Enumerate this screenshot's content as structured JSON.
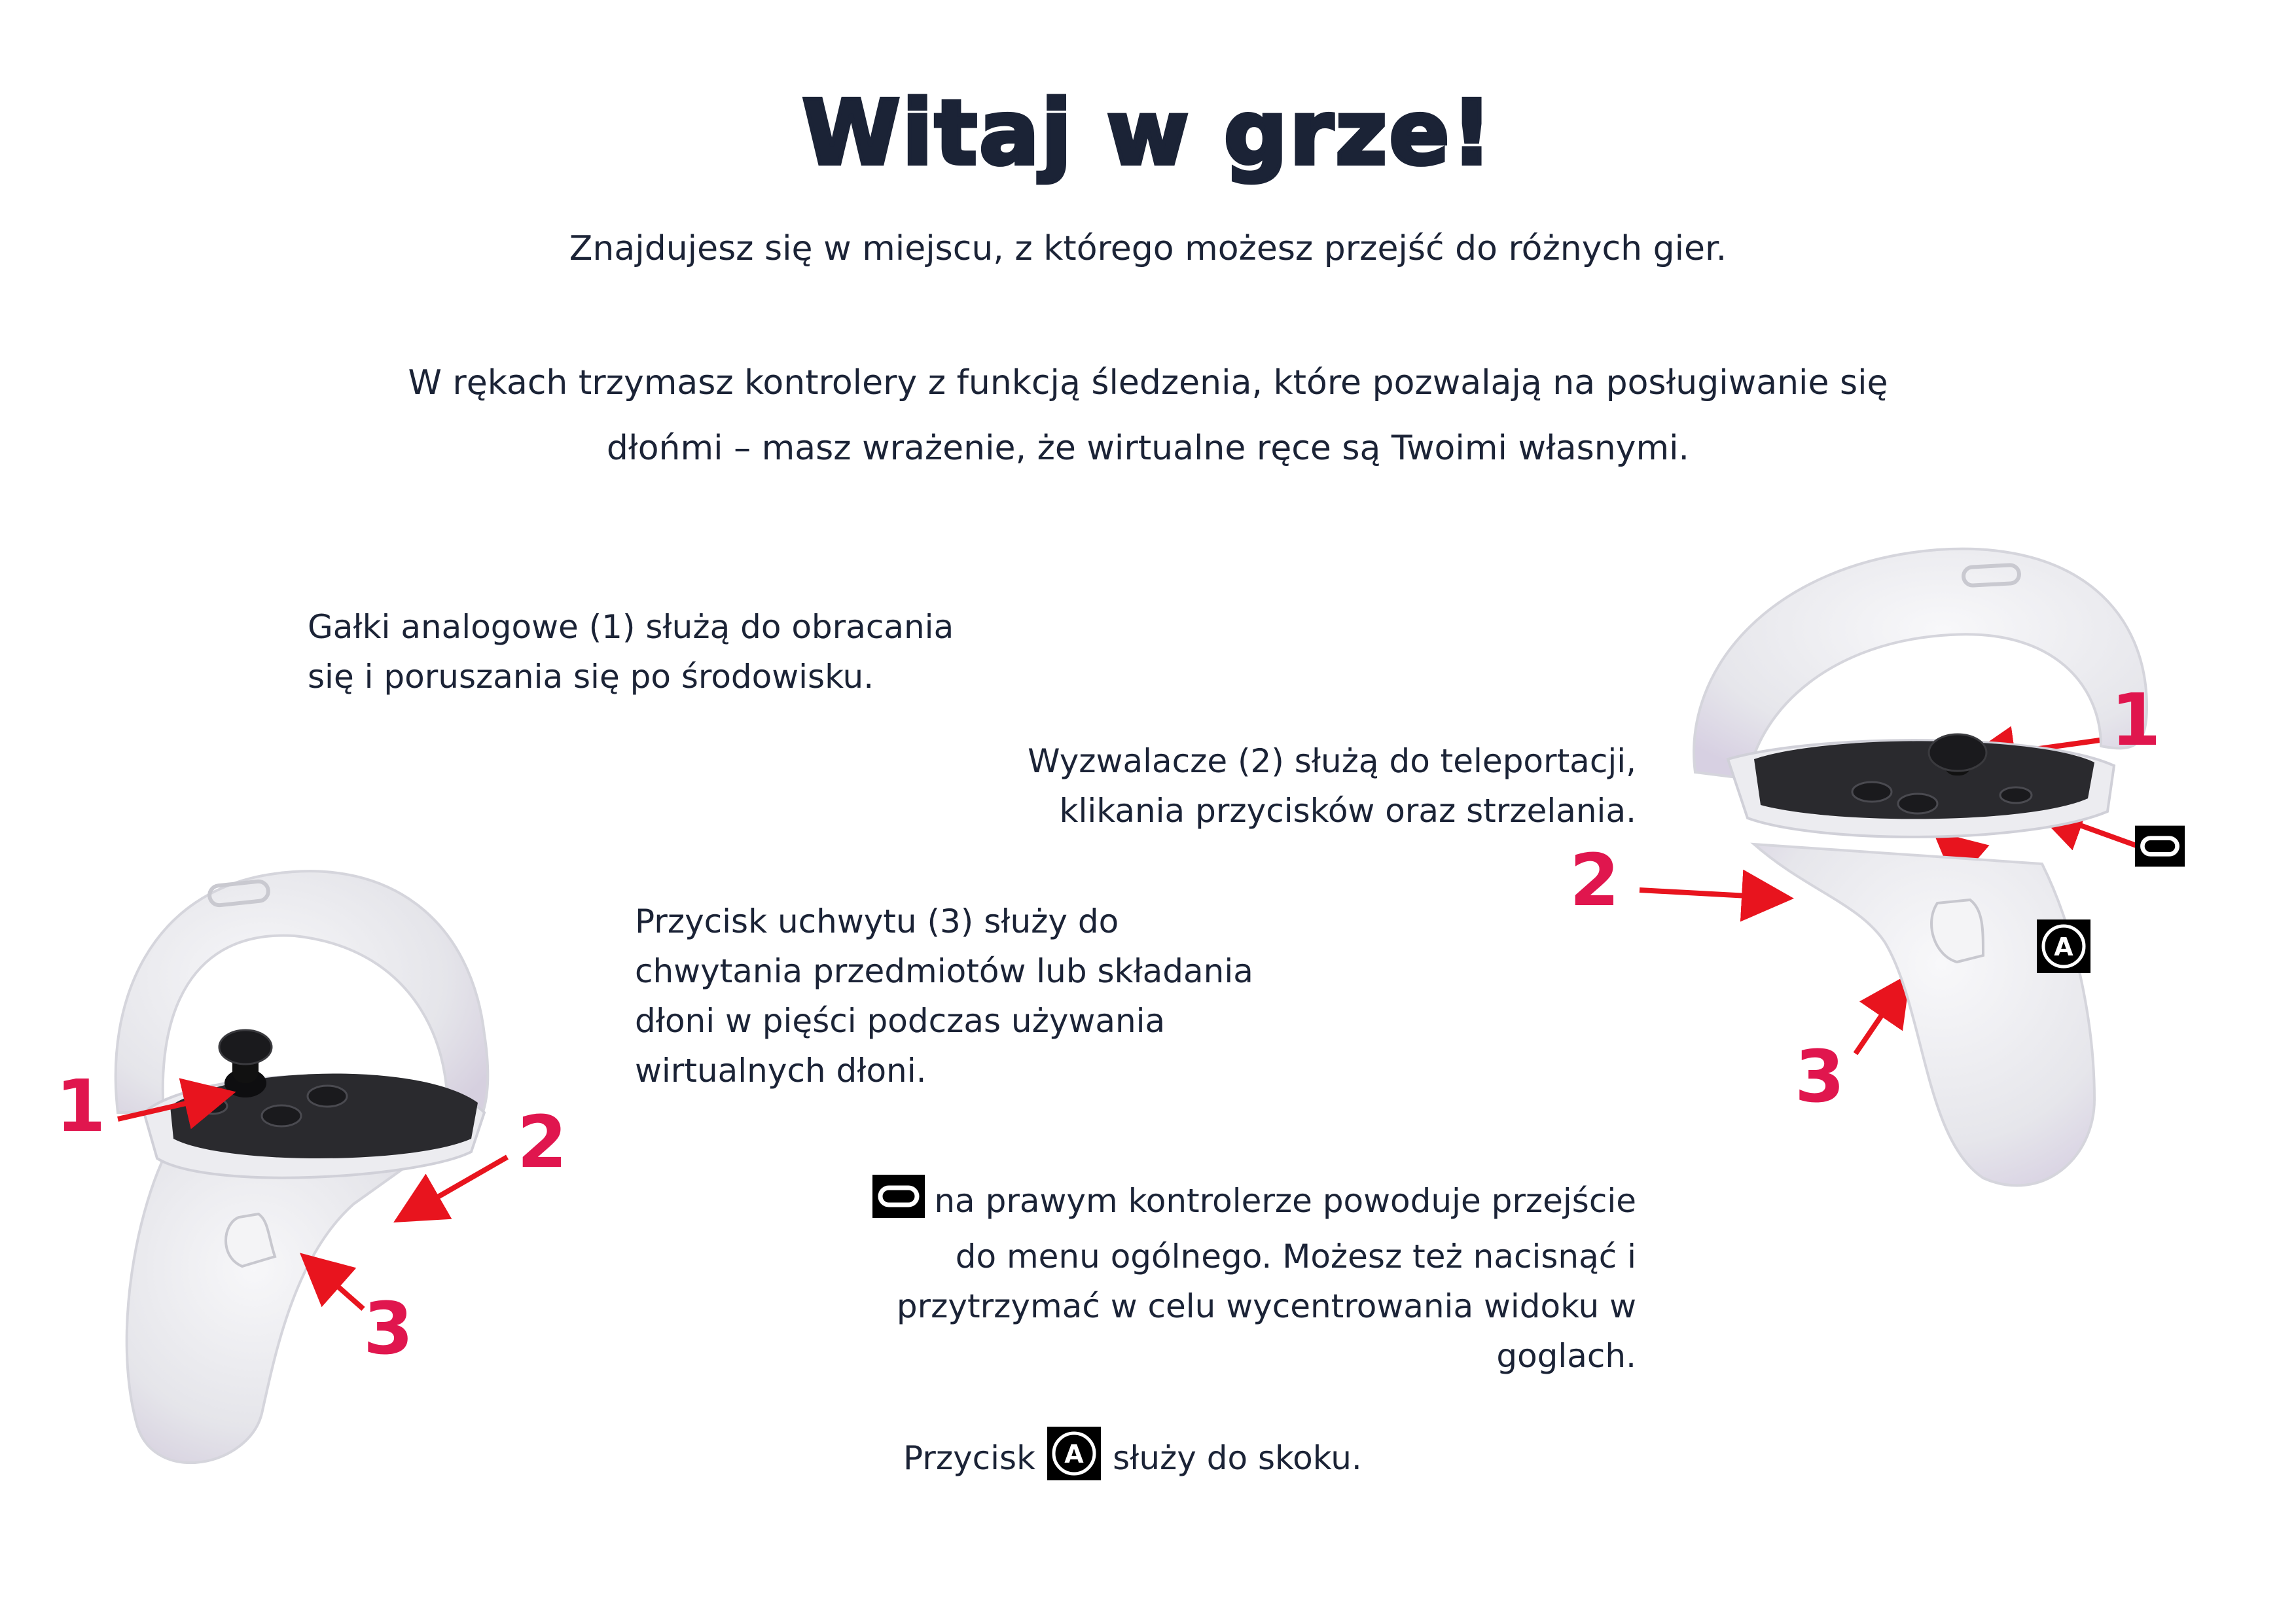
{
  "title": "Witaj w grze!",
  "intro": "Znajdujesz się w miejscu, z którego możesz przejść do różnych gier.",
  "description": {
    "line1": "W rękach trzymasz kontrolery z funkcją śledzenia, które pozwalają na posługiwanie się",
    "line2": "dłońmi – masz wrażenie, że wirtualne ręce są Twoimi własnymi."
  },
  "instructions": {
    "analog": [
      "Gałki analogowe (1) służą do obracania",
      "się i poruszania się po środowisku."
    ],
    "trigger": [
      "Wyzwalacze (2) służą do teleportacji,",
      "klikania przycisków oraz strzelania."
    ],
    "grip": [
      "Przycisk uchwytu (3) służy do",
      "chwytania przedmiotów lub składania",
      "dłoni w pięści podczas używania",
      "wirtualnych dłoni."
    ],
    "oculus": [
      "na prawym kontrolerze powoduje przejście",
      "do menu ogólnego. Możesz też nacisnąć i",
      "przytrzymać w celu wycentrowania widoku w",
      "goglach."
    ],
    "jump_before": "Przycisk",
    "jump_after": "służy do skoku."
  },
  "labels": {
    "left": {
      "n1": "1",
      "n2": "2",
      "n3": "3"
    },
    "right": {
      "n1": "1",
      "n2": "2",
      "n3": "3"
    },
    "a_button": "A"
  },
  "colors": {
    "text": "#1b2336",
    "annotation": "#e0164e",
    "controller": "#e9e9ec",
    "faceplate": "#2a2a2e"
  },
  "icons": [
    "oculus-button-icon",
    "a-button-icon",
    "controller-image"
  ]
}
